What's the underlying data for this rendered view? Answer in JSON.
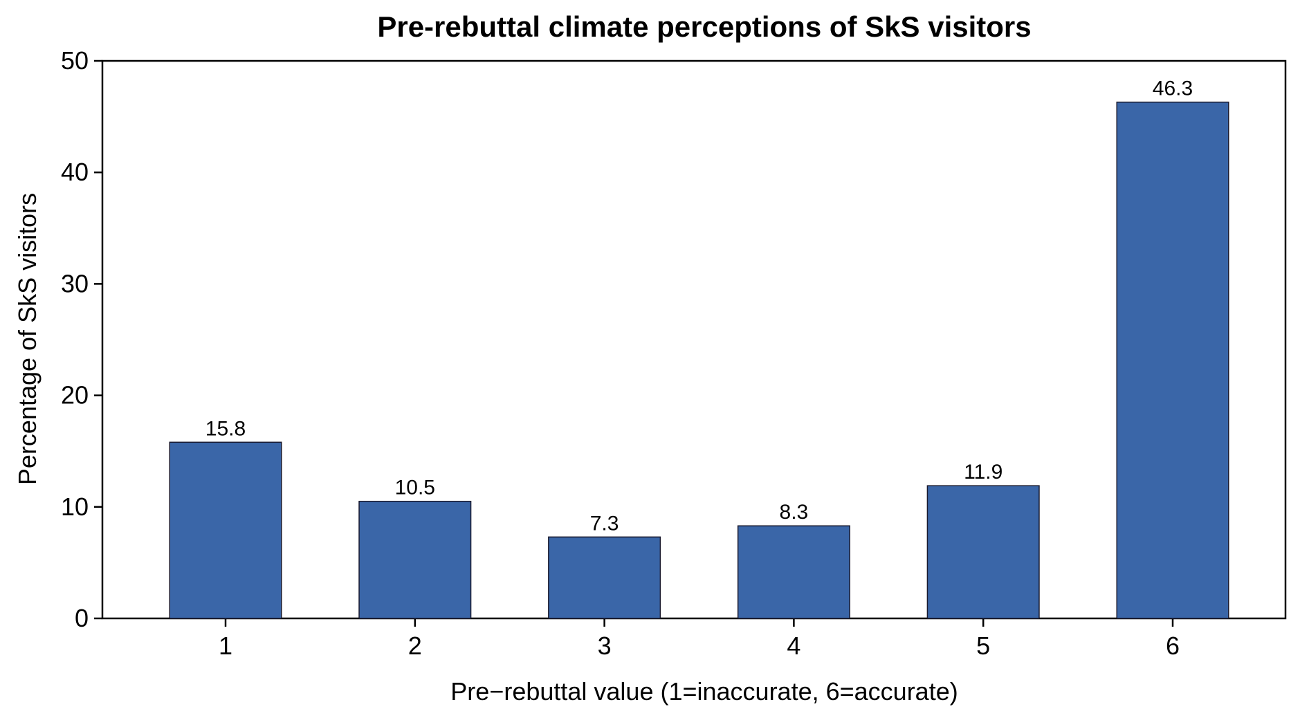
{
  "chart_data": {
    "type": "bar",
    "title": "Pre-rebuttal climate perceptions of SkS visitors",
    "xlabel": "Pre−rebuttal value (1=inaccurate, 6=accurate)",
    "ylabel": "Percentage of SkS visitors",
    "categories": [
      "1",
      "2",
      "3",
      "4",
      "5",
      "6"
    ],
    "values": [
      15.8,
      10.5,
      7.3,
      8.3,
      11.9,
      46.3
    ],
    "data_labels": [
      "15.8",
      "10.5",
      "7.3",
      "8.3",
      "11.9",
      "46.3"
    ],
    "ylim": [
      0,
      50
    ],
    "yticks": [
      "0",
      "10",
      "20",
      "30",
      "40",
      "50"
    ],
    "bar_color": "#3a66a8",
    "bar_edge_color": "#1a1a2e",
    "grid": false,
    "legend": "none"
  }
}
